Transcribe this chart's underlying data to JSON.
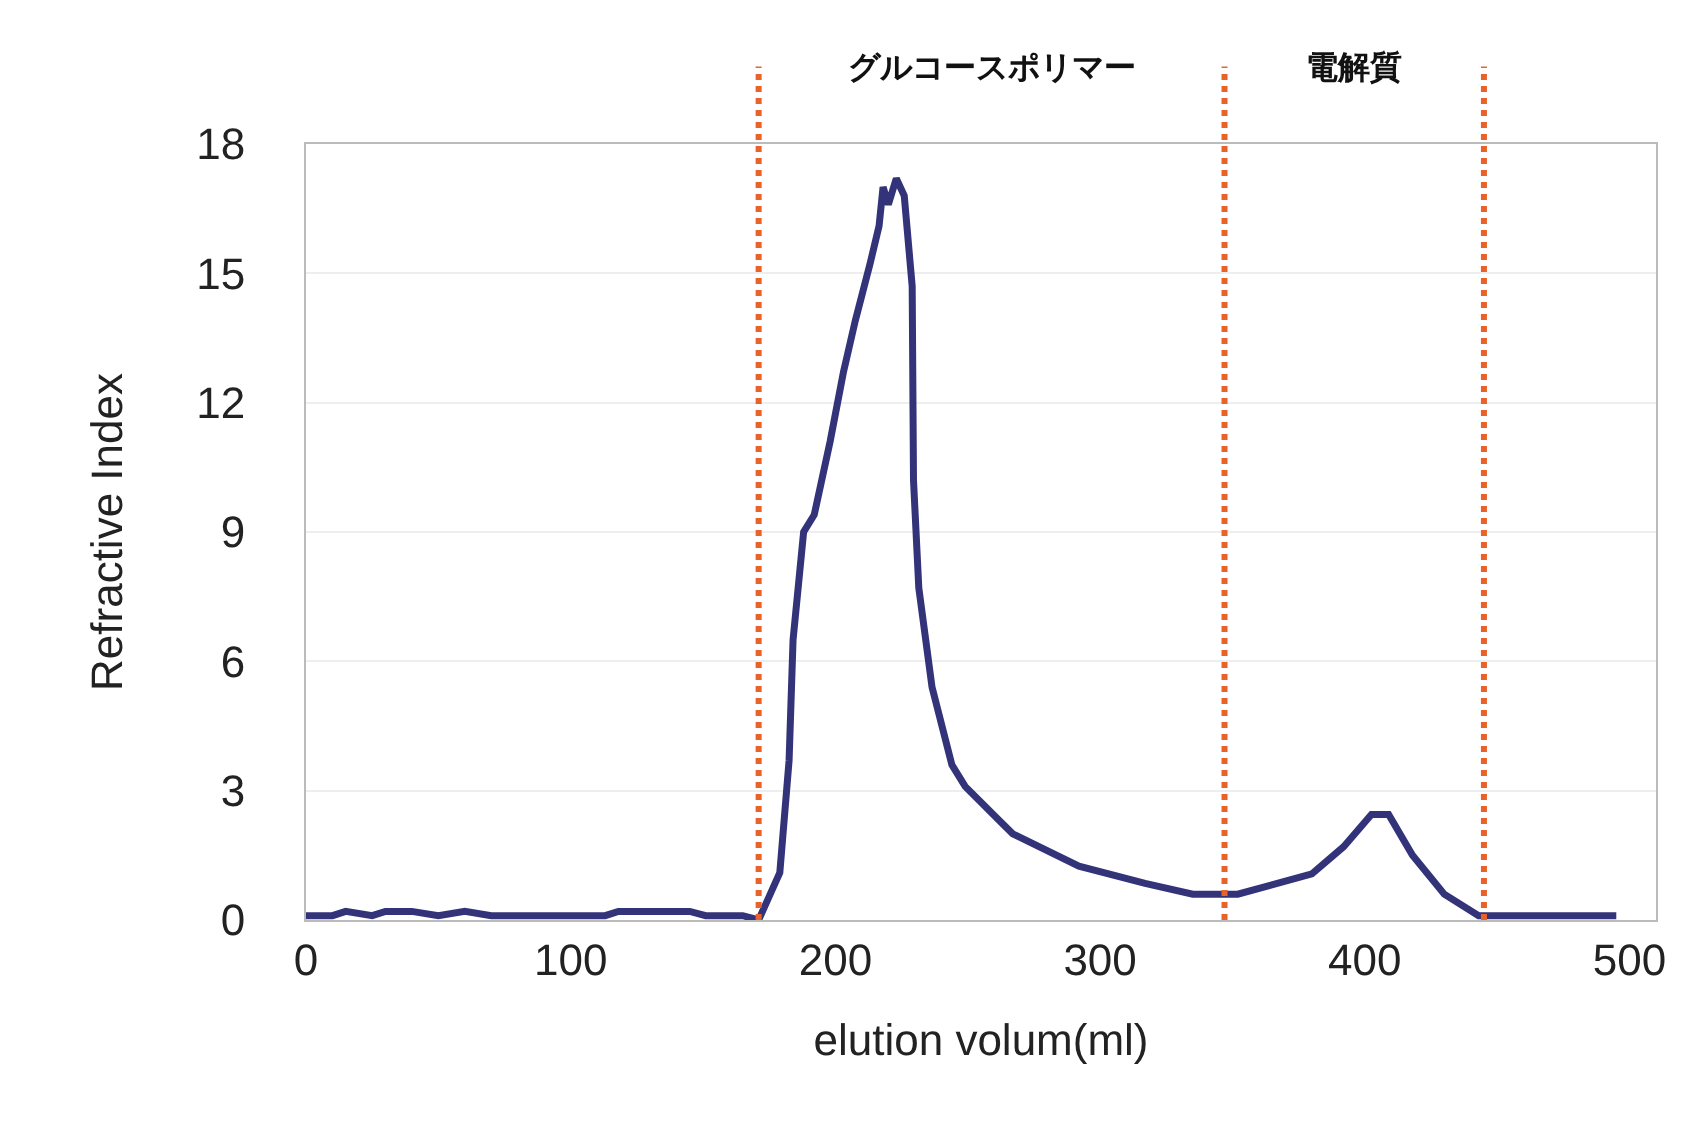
{
  "chart_data": {
    "type": "line",
    "xlabel": "elution volum(ml)",
    "ylabel": "Refractive Index",
    "x": [
      0,
      10,
      15,
      25,
      30,
      40,
      50,
      60,
      70,
      100,
      113,
      118,
      145,
      151,
      165,
      171,
      179,
      182.5,
      184,
      188,
      192,
      198,
      203,
      207.5,
      213,
      216.5,
      218,
      220,
      223,
      226,
      229,
      229.5,
      231.5,
      236.5,
      244,
      249,
      262,
      267,
      292,
      317,
      335,
      352,
      380,
      392,
      402.5,
      409,
      418,
      430,
      443,
      458,
      475,
      495
    ],
    "series": [
      {
        "color": "#33337a",
        "values": [
          0.1,
          0.1,
          0.2,
          0.1,
          0.2,
          0.2,
          0.1,
          0.2,
          0.1,
          0.1,
          0.1,
          0.2,
          0.2,
          0.1,
          0.1,
          0,
          1.1,
          3.7,
          6.5,
          9.0,
          9.4,
          11.1,
          12.7,
          13.9,
          15.2,
          16.1,
          17.0,
          16.6,
          17.2,
          16.8,
          14.7,
          10.2,
          7.7,
          5.4,
          3.6,
          3.1,
          2.3,
          2.0,
          1.25,
          0.85,
          0.6,
          0.6,
          1.07,
          1.7,
          2.45,
          2.45,
          1.5,
          0.6,
          0.1,
          0.1,
          0.1,
          0.1
        ]
      }
    ],
    "xlim": [
      0,
      510
    ],
    "xticks": [
      0,
      100,
      200,
      300,
      400,
      500
    ],
    "ylim": [
      0,
      18
    ],
    "yticks": [
      0,
      3,
      6,
      9,
      12,
      15,
      18
    ],
    "grid": "y",
    "marker": "none",
    "line_style": "solid",
    "ref_lines": [
      {
        "axis": "x",
        "value": 171,
        "color": "#e8622a",
        "line_style": "dotted"
      },
      {
        "axis": "x",
        "value": 347,
        "color": "#e8622a",
        "line_style": "dotted"
      },
      {
        "axis": "x",
        "value": 445,
        "color": "#e8622a",
        "line_style": "dotted"
      }
    ],
    "annotations": [
      "グルコースポリマー",
      "電解質"
    ]
  }
}
